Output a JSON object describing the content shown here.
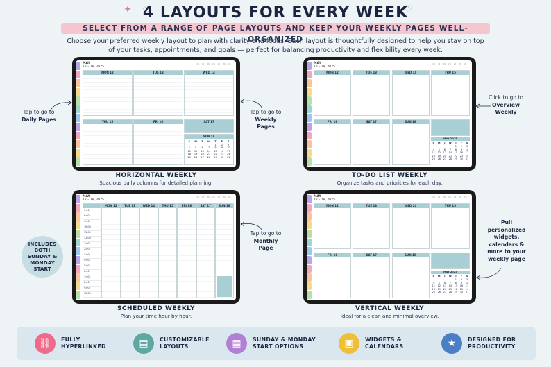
{
  "header": {
    "title": "4 LAYOUTS FOR EVERY WEEK",
    "subtitle": "SELECT FROM A RANGE OF PAGE LAYOUTS AND KEEP YOUR WEEKLY PAGES WELL-ORGANIZED",
    "intro": "Choose your preferred weekly layout to plan with clarity and focus. Each layout is thoughtfully designed to help you stay on top of your tasks, appointments, and goals — perfect for balancing productivity and flexibility every week."
  },
  "planner": {
    "month": "MAY",
    "range": "12 – 18, 2025",
    "days": [
      "MON 12",
      "TUE 13",
      "WED 14",
      "THU 15",
      "FRI 16",
      "SAT 17",
      "SUN 18"
    ],
    "mini_title": "MAY 2025",
    "mini_dow": [
      "S",
      "M",
      "T",
      "W",
      "T",
      "F",
      "S"
    ],
    "mini_days": [
      "",
      "",
      "",
      "",
      "1",
      "2",
      "3",
      "4",
      "5",
      "6",
      "7",
      "8",
      "9",
      "10",
      "11",
      "12",
      "13",
      "14",
      "15",
      "16",
      "17",
      "18",
      "19",
      "20",
      "21",
      "22",
      "23",
      "24",
      "25",
      "26",
      "27",
      "28",
      "29",
      "30",
      "31"
    ]
  },
  "layouts": [
    {
      "name": "HORIZONTAL WEEKLY",
      "desc": "Spacious daily columns for detailed planning."
    },
    {
      "name": "TO-DO LIST WEEKLY",
      "desc": "Organize tasks and priorities for each day."
    },
    {
      "name": "SCHEDULED WEEKLY",
      "desc": "Plan your time hour by hour."
    },
    {
      "name": "VERTICAL WEEKLY",
      "desc": "Ideal for a clean and minimal overview."
    }
  ],
  "callouts": {
    "daily": {
      "line1": "Tap to go to",
      "line2": "Daily Pages"
    },
    "weekly": {
      "line1": "Tap to go to",
      "line2": "Weekly",
      "line3": "Pages"
    },
    "overview": {
      "line1": "Click to go to",
      "line2": "Overview",
      "line3": "Weekly"
    },
    "monthly": {
      "line1": "Tap to go to",
      "line2": "Monthly",
      "line3": "Page"
    },
    "widgets": {
      "line1": "Pull",
      "line2": "personalized",
      "line3": "widgets,",
      "line4": "calendars &",
      "line5": "more to your",
      "line6": "weekly page"
    },
    "includes": {
      "line1": "INCLUDES",
      "line2": "BOTH",
      "line3": "SUNDAY &",
      "line4": "MONDAY",
      "line5": "START"
    }
  },
  "features": [
    {
      "line1": "FULLY",
      "line2": "HYPERLINKED",
      "icon": "link-icon",
      "color": "#ef6b8a"
    },
    {
      "line1": "CUSTOMIZABLE",
      "line2": "LAYOUTS",
      "icon": "layout-icon",
      "color": "#5fa8a2"
    },
    {
      "line1": "SUNDAY & MONDAY",
      "line2": "START OPTIONS",
      "icon": "calendar-icon",
      "color": "#b37fd6"
    },
    {
      "line1": "WIDGETS &",
      "line2": "CALENDARS",
      "icon": "widgets-icon",
      "color": "#f0bf3a"
    },
    {
      "line1": "DESIGNED FOR",
      "line2": "PRODUCTIVITY",
      "icon": "star-icon",
      "color": "#4a7ec6"
    }
  ],
  "hours": [
    "7:00",
    "8:00",
    "9:00",
    "10:00",
    "11:00",
    "12:00",
    "1:00",
    "2:00",
    "3:00",
    "4:00",
    "5:00",
    "6:00",
    "7:00",
    "8:00",
    "9:00",
    "10:00"
  ],
  "tab_colors": [
    "#b9a6e6",
    "#f4a8c0",
    "#f7c6a0",
    "#f6d98b",
    "#b8e0a7",
    "#9fd6cf",
    "#9cc8ee",
    "#b9a6e6",
    "#f4a8c0",
    "#f7c6a0",
    "#f6d98b",
    "#b8e0a7"
  ]
}
